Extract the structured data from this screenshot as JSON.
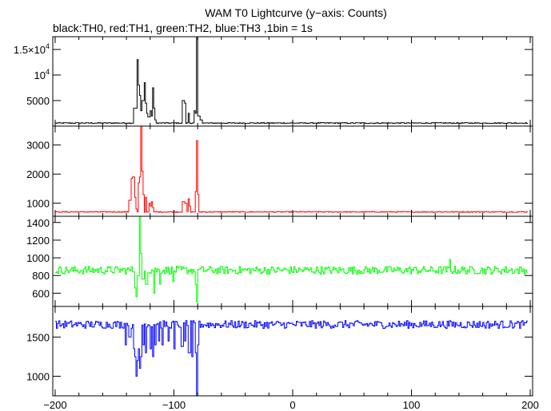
{
  "title": "WAM T0 Lightcurve (y−axis: Counts)",
  "subtitle": "black:TH0, red:TH1, green:TH2, blue:TH3 ,1bin = 1s",
  "chart_data": {
    "type": "line",
    "xlim": [
      -202,
      202
    ],
    "x_ticks": [
      {
        "value": -200,
        "label": "−200"
      },
      {
        "value": -100,
        "label": "−100"
      },
      {
        "value": 0,
        "label": "0"
      },
      {
        "value": 100,
        "label": "100"
      },
      {
        "value": 200,
        "label": "200"
      }
    ],
    "panels": [
      {
        "name": "TH0",
        "color": "#000000",
        "ylim": [
          0,
          17500
        ],
        "y_ticks": [
          {
            "value": 5000,
            "label": "5000"
          },
          {
            "value": 10000,
            "label": "10",
            "exp": "4"
          },
          {
            "value": 15000,
            "label": "1.5×10",
            "exp": "4"
          }
        ],
        "baseline": 600,
        "noise": 90,
        "features": [
          [
            -134,
            -131,
            3500
          ],
          [
            -131,
            -130,
            13000
          ],
          [
            -130,
            -129,
            8000
          ],
          [
            -129,
            -128,
            6000
          ],
          [
            -128,
            -127,
            3000
          ],
          [
            -127,
            -125,
            5000
          ],
          [
            -125,
            -124,
            8500
          ],
          [
            -124,
            -123,
            4500
          ],
          [
            -123,
            -122,
            2500
          ],
          [
            -122,
            -120,
            1800
          ],
          [
            -120,
            -119,
            3000
          ],
          [
            -119,
            -118,
            2000
          ],
          [
            -118,
            -117,
            7500
          ],
          [
            -117,
            -116,
            3500
          ],
          [
            -116,
            -115,
            1200
          ],
          [
            -93,
            -91,
            5000
          ],
          [
            -91,
            -90,
            4500
          ],
          [
            -88,
            -87,
            2500
          ],
          [
            -83,
            -82,
            3000
          ],
          [
            -82,
            -81,
            2500
          ],
          [
            -81,
            -80,
            17500
          ],
          [
            -80,
            -78,
            2000
          ],
          [
            -78,
            -76,
            1200
          ]
        ]
      },
      {
        "name": "TH1",
        "color": "#ff0000",
        "ylim": [
          550,
          3650
        ],
        "y_ticks": [
          {
            "value": 1000,
            "label": "1000"
          },
          {
            "value": 2000,
            "label": "2000"
          },
          {
            "value": 3000,
            "label": "3000"
          }
        ],
        "baseline": 700,
        "noise": 15,
        "features": [
          [
            -138,
            -136,
            1100
          ],
          [
            -136,
            -135,
            1850
          ],
          [
            -135,
            -133,
            1900
          ],
          [
            -133,
            -132,
            1200
          ],
          [
            -132,
            -131,
            800
          ],
          [
            -130,
            -129,
            1700
          ],
          [
            -129,
            -128,
            1900
          ],
          [
            -128,
            -127,
            3650
          ],
          [
            -127,
            -126,
            2100
          ],
          [
            -126,
            -125,
            1300
          ],
          [
            -124,
            -123,
            1200
          ],
          [
            -121,
            -120,
            1000
          ],
          [
            -120,
            -119,
            900
          ],
          [
            -119,
            -118,
            1050
          ],
          [
            -118,
            -117,
            850
          ],
          [
            -93,
            -91,
            1050
          ],
          [
            -91,
            -89,
            1000
          ],
          [
            -88,
            -87,
            1150
          ],
          [
            -87,
            -86,
            900
          ],
          [
            -82,
            -81,
            1400
          ],
          [
            -81,
            -80,
            3150
          ],
          [
            -80,
            -79,
            1300
          ]
        ]
      },
      {
        "name": "TH2",
        "color": "#00ff00",
        "ylim": [
          450,
          1470
        ],
        "y_ticks": [
          {
            "value": 600,
            "label": "600"
          },
          {
            "value": 800,
            "label": "800"
          },
          {
            "value": 1000,
            "label": "1000"
          },
          {
            "value": 1200,
            "label": "1200"
          },
          {
            "value": 1400,
            "label": "1400"
          }
        ],
        "baseline": 860,
        "noise": 45,
        "features": [
          [
            -133,
            -132,
            660
          ],
          [
            -132,
            -131,
            560
          ],
          [
            -131,
            -129,
            800
          ],
          [
            -129,
            -128,
            1470
          ],
          [
            -128,
            -127,
            1050
          ],
          [
            -127,
            -125,
            760
          ],
          [
            -124,
            -122,
            700
          ],
          [
            -117,
            -116,
            600
          ],
          [
            -112,
            -111,
            700
          ],
          [
            -101,
            -100,
            730
          ],
          [
            -82,
            -81,
            700
          ],
          [
            -81,
            -80,
            500
          ],
          [
            132,
            133,
            980
          ]
        ]
      },
      {
        "name": "TH3",
        "color": "#0000ff",
        "ylim": [
          750,
          1890
        ],
        "y_ticks": [
          {
            "value": 1000,
            "label": "1000"
          },
          {
            "value": 1500,
            "label": "1500"
          }
        ],
        "baseline": 1660,
        "noise": 50,
        "features": [
          [
            -141,
            -140,
            1400
          ],
          [
            -138,
            -136,
            1500
          ],
          [
            -134,
            -133,
            1350
          ],
          [
            -133,
            -132,
            1250
          ],
          [
            -132,
            -131,
            1000
          ],
          [
            -131,
            -130,
            1200
          ],
          [
            -130,
            -129,
            1350
          ],
          [
            -129,
            -128,
            1100
          ],
          [
            -128,
            -127,
            1250
          ],
          [
            -126,
            -125,
            1400
          ],
          [
            -124,
            -123,
            1300
          ],
          [
            -120,
            -119,
            1350
          ],
          [
            -118,
            -117,
            1250
          ],
          [
            -116,
            -115,
            1400
          ],
          [
            -113,
            -112,
            1450
          ],
          [
            -110,
            -109,
            1400
          ],
          [
            -105,
            -104,
            1450
          ],
          [
            -100,
            -99,
            1350
          ],
          [
            -94,
            -92,
            1380
          ],
          [
            -91,
            -90,
            1450
          ],
          [
            -88,
            -87,
            1300
          ],
          [
            -87,
            -86,
            1300
          ],
          [
            -85,
            -84,
            1250
          ],
          [
            -82,
            -81,
            1300
          ],
          [
            -81,
            -80,
            700
          ],
          [
            -80,
            -79,
            1400
          ]
        ]
      }
    ]
  }
}
